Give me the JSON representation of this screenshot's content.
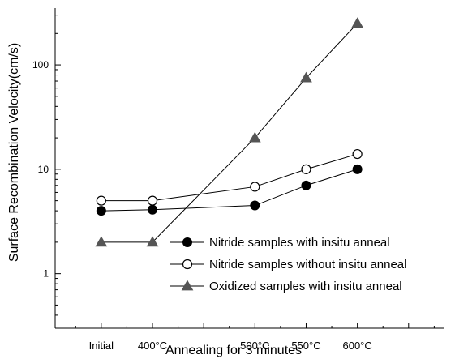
{
  "chart_data": {
    "type": "line",
    "xlabel": "Annealing for 3 minutes",
    "ylabel": "Surface Recombination Velocity(cm/s)",
    "yscale": "log",
    "ylim": [
      0.3,
      350
    ],
    "categories": [
      "Initial",
      "400°C",
      "500°C",
      "550°C",
      "600°C"
    ],
    "x_positions": [
      400,
      450,
      550,
      600,
      650
    ],
    "xlim": [
      355,
      735
    ],
    "y_ticks": [
      1,
      10,
      100
    ],
    "y_tick_labels": [
      "1",
      "10",
      "100"
    ],
    "grid": false,
    "legend_position": "bottom-right",
    "series": [
      {
        "name": "Nitride samples with insitu anneal",
        "marker": "filled-circle",
        "color": "#000000",
        "values": [
          4.0,
          4.1,
          4.5,
          7.0,
          10.0
        ]
      },
      {
        "name": "Nitride samples without insitu anneal",
        "marker": "open-circle",
        "color": "#000000",
        "values": [
          5.0,
          5.0,
          6.8,
          10.0,
          14.0
        ]
      },
      {
        "name": "Oxidized samples with insitu anneal",
        "marker": "filled-triangle",
        "color": "#555555",
        "values": [
          2.0,
          2.0,
          20.0,
          75.0,
          250.0
        ]
      }
    ]
  }
}
